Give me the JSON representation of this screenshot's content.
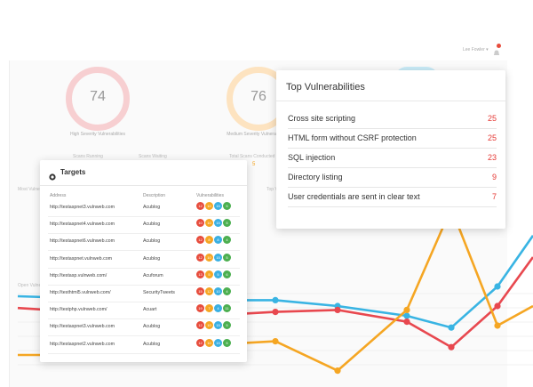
{
  "header": {
    "user_label": "Lee Fowler ▾"
  },
  "summary": {
    "high": {
      "value": "74",
      "caption": "High Severity Vulnerabilities",
      "color": "#f7cfd1"
    },
    "medium": {
      "value": "76",
      "caption": "Medium Severity Vulnerabilities",
      "color": "#fde3c0"
    },
    "third_color": "#c9ebf7"
  },
  "background_labels": {
    "scans_running": "Scans Running",
    "scans_waiting": "Scans Waiting",
    "total_scans": "Total Scans Conducted",
    "total_scans_value": "5",
    "most_vulnerable": "Most Vulnerable Targets",
    "top_vuln_short": "Top Vulnerabilities",
    "open_vulns": "Open Vulnerabilities"
  },
  "top_vulnerabilities": {
    "title": "Top Vulnerabilities",
    "items": [
      {
        "name": "Cross site scripting",
        "count": "25"
      },
      {
        "name": "HTML form without CSRF protection",
        "count": "25"
      },
      {
        "name": "SQL injection",
        "count": "23"
      },
      {
        "name": "Directory listing",
        "count": "9"
      },
      {
        "name": "User credentials are sent in clear text",
        "count": "7"
      }
    ]
  },
  "targets": {
    "title": "Targets",
    "columns": {
      "address": "Address",
      "description": "Description",
      "vulnerabilities": "Vulnerabilities"
    },
    "badge_colors": {
      "high": "#e74c3c",
      "medium": "#f5a623",
      "low": "#3ab0e2",
      "info": "#4caf50"
    },
    "rows": [
      {
        "address": "http://testaspnet3.vulnweb.com",
        "description": "Acublog",
        "badges": [
          "12",
          "10",
          "15",
          "5"
        ]
      },
      {
        "address": "http://testaspnet4.vulnweb.com",
        "description": "Acublog",
        "badges": [
          "10",
          "10",
          "15",
          "5"
        ]
      },
      {
        "address": "http://testaspnet6.vulnweb.com",
        "description": "Acublog",
        "badges": [
          "12",
          "8",
          "8",
          "4"
        ]
      },
      {
        "address": "http://testaspnet.vulnweb.com",
        "description": "Acublog",
        "badges": [
          "12",
          "10",
          "15",
          "5"
        ]
      },
      {
        "address": "http://testasp.vulnweb.com/",
        "description": "Acuforum",
        "badges": [
          "13",
          "5",
          "5",
          "6"
        ]
      },
      {
        "address": "http://testhtml5.vulnweb.com/",
        "description": "SecurityTweets",
        "badges": [
          "15",
          "12",
          "10",
          "4"
        ]
      },
      {
        "address": "http://testphp.vulnweb.com/",
        "description": "Acuart",
        "badges": [
          "19",
          "7",
          "4",
          "11"
        ]
      },
      {
        "address": "http://testaspnet3.vulnweb.com",
        "description": "Acublog",
        "badges": [
          "12",
          "10",
          "15",
          "5"
        ]
      },
      {
        "address": "http://testaspnet2.vulnweb.com",
        "description": "Acublog",
        "badges": [
          "12",
          "10",
          "15",
          "5"
        ]
      }
    ]
  },
  "chart_data": {
    "type": "line",
    "series": [
      {
        "color": "#39b4e3",
        "values": [
          35,
          34,
          36,
          33,
          33,
          30,
          25,
          19,
          40,
          66
        ]
      },
      {
        "color": "#e8484f",
        "values": [
          29,
          27,
          27,
          25,
          27,
          28,
          22,
          9,
          30,
          55
        ]
      },
      {
        "color": "#f5a623",
        "values": [
          5,
          5,
          8,
          10,
          12,
          -3,
          28,
          80,
          20,
          30
        ]
      }
    ]
  }
}
